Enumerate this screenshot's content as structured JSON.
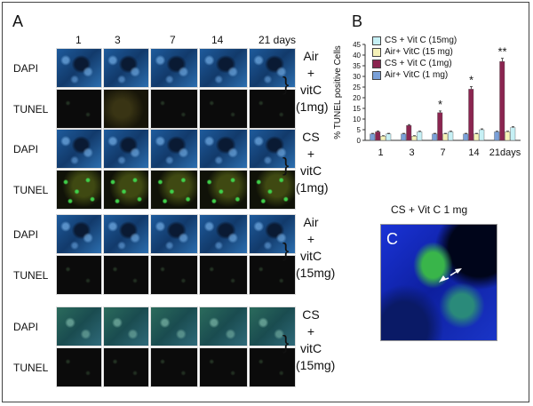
{
  "panel_a": {
    "letter": "A",
    "days": [
      "1",
      "3",
      "7",
      "14",
      "21 days"
    ],
    "groups": [
      {
        "rows": [
          "DAPI",
          "TUNEL"
        ],
        "label": [
          "Air",
          "+",
          "vitC",
          "(1mg)"
        ]
      },
      {
        "rows": [
          "DAPI",
          "TUNEL"
        ],
        "label": [
          "CS",
          "+",
          "vitC",
          "(1mg)"
        ]
      },
      {
        "rows": [
          "DAPI",
          "TUNEL"
        ],
        "label": [
          "Air",
          "+",
          "vitC",
          "(15mg)"
        ]
      },
      {
        "rows": [
          "DAPI",
          "TUNEL"
        ],
        "label": [
          "CS",
          "+",
          "vitC",
          "(15mg)"
        ]
      }
    ]
  },
  "panel_b": {
    "letter": "B",
    "legend": [
      {
        "label": "CS + Vit C (15mg)",
        "color": "#c6f0f5"
      },
      {
        "label": "Air+ VitC (15 mg)",
        "color": "#f5f2b8"
      },
      {
        "label": "CS + Vit C (1mg)",
        "color": "#8a2550"
      },
      {
        "label": "Air+ VitC (1 mg)",
        "color": "#7aa0d8"
      }
    ]
  },
  "chart_data": {
    "type": "bar",
    "categories": [
      "1",
      "3",
      "7",
      "14",
      "21days"
    ],
    "series": [
      {
        "name": "Air+ VitC (1 mg)",
        "values": [
          3,
          3,
          3,
          3,
          4
        ],
        "color": "#7aa0d8"
      },
      {
        "name": "CS + Vit C (1mg)",
        "values": [
          4,
          7,
          13,
          24,
          37
        ],
        "color": "#8a2550"
      },
      {
        "name": "Air+ VitC (15 mg)",
        "values": [
          2,
          2,
          3,
          3,
          4
        ],
        "color": "#f5f2b8"
      },
      {
        "name": "CS + Vit C (15mg)",
        "values": [
          3,
          4,
          4,
          5,
          6
        ],
        "color": "#c6f0f5"
      }
    ],
    "errors": [
      [
        0.3,
        0.3,
        0.3,
        0.3,
        0.3
      ],
      [
        0.4,
        0.4,
        0.8,
        1.2,
        1.5
      ],
      [
        0.2,
        0.2,
        0.3,
        0.3,
        0.3
      ],
      [
        0.3,
        0.3,
        0.3,
        0.4,
        0.4
      ]
    ],
    "ylabel": "% TUNEL positive Cells",
    "ylim": [
      0,
      45
    ],
    "yticks": [
      "0",
      "5",
      "10",
      "15",
      "20",
      "25",
      "30",
      "35",
      "40",
      "45"
    ],
    "annotations": [
      {
        "category": "7",
        "text": "*"
      },
      {
        "category": "14",
        "text": "*"
      },
      {
        "category": "21days",
        "text": "**"
      }
    ]
  },
  "panel_c": {
    "title": "CS + Vit C 1 mg",
    "letter": "C"
  }
}
